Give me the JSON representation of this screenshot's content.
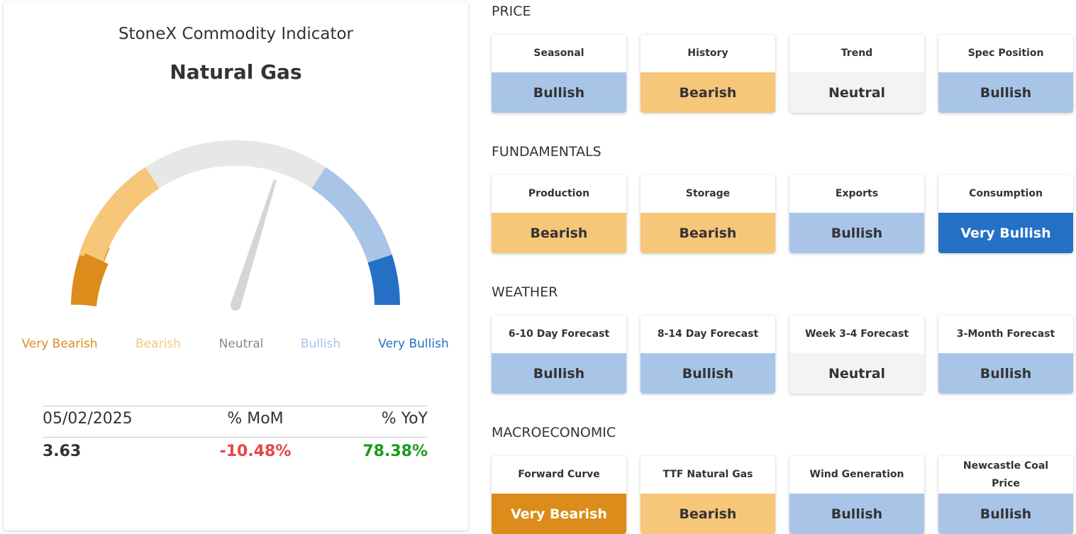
{
  "indicator": {
    "title": "StoneX Commodity Indicator",
    "subtitle": "Natural Gas",
    "gauge_labels": [
      {
        "text": "Very Bearish",
        "color": "#dc8c1a"
      },
      {
        "text": "Bearish",
        "color": "#f6c679"
      },
      {
        "text": "Neutral",
        "color": "#888888"
      },
      {
        "text": "Bullish",
        "color": "#a8c5e8"
      },
      {
        "text": "Very Bullish",
        "color": "#2570c4"
      }
    ],
    "table": {
      "header": [
        "05/02/2025",
        "% MoM",
        "% YoY"
      ],
      "values": [
        "3.63",
        "-10.48%",
        "78.38%"
      ]
    }
  },
  "sections": [
    {
      "title": "PRICE",
      "cards": [
        {
          "label": "Seasonal",
          "signal": "Bullish",
          "color": "#a8c5e8"
        },
        {
          "label": "History",
          "signal": "Bearish",
          "color": "#f6c679"
        },
        {
          "label": "Trend",
          "signal": "Neutral",
          "color": "#f2f3f3"
        },
        {
          "label": "Spec Position",
          "signal": "Bullish",
          "color": "#a8c5e8"
        }
      ]
    },
    {
      "title": "FUNDAMENTALS",
      "cards": [
        {
          "label": "Production",
          "signal": "Bearish",
          "color": "#f6c679"
        },
        {
          "label": "Storage",
          "signal": "Bearish",
          "color": "#f6c679"
        },
        {
          "label": "Exports",
          "signal": "Bullish",
          "color": "#a8c5e8"
        },
        {
          "label": "Consumption",
          "signal": "Very Bullish",
          "color": "#2570c4"
        }
      ]
    },
    {
      "title": "WEATHER",
      "cards": [
        {
          "label": "6-10 Day Forecast",
          "signal": "Bullish",
          "color": "#a8c5e8"
        },
        {
          "label": "8-14 Day Forecast",
          "signal": "Bullish",
          "color": "#a8c5e8"
        },
        {
          "label": "Week 3-4 Forecast",
          "signal": "Neutral",
          "color": "#f2f3f3"
        },
        {
          "label": "3-Month Forecast",
          "signal": "Bullish",
          "color": "#a8c5e8"
        }
      ]
    },
    {
      "title": "MACROECONOMIC",
      "cards": [
        {
          "label": "Forward Curve",
          "signal": "Very Bearish",
          "color": "#dc8c1a"
        },
        {
          "label": "TTF Natural Gas",
          "signal": "Bearish",
          "color": "#f6c679"
        },
        {
          "label": "Wind Generation",
          "signal": "Bullish",
          "color": "#a8c5e8"
        },
        {
          "label": "Newcastle Coal Price",
          "signal": "Bullish",
          "color": "#a8c5e8"
        }
      ]
    }
  ]
}
